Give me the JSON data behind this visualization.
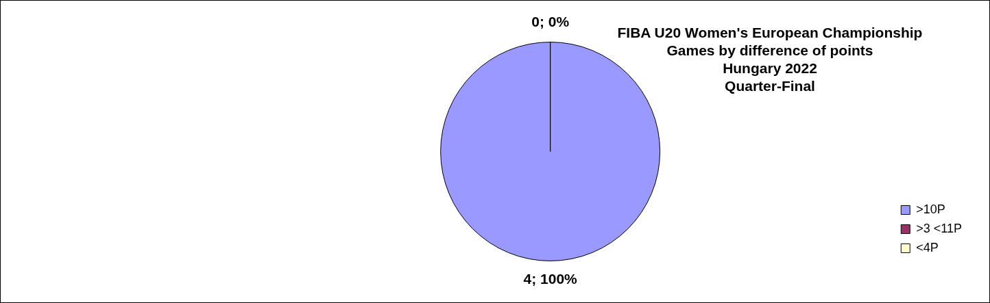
{
  "chart_data": {
    "type": "pie",
    "title": "FIBA U20 Women's European Championship",
    "subtitle": "Games by difference of points\nHungary 2022\nQuarter-Final",
    "categories": [
      ">10P",
      ">3 <11P",
      "<4P"
    ],
    "values": [
      4,
      0,
      0
    ],
    "colors": [
      "#9999ff",
      "#993366",
      "#ffffcc"
    ],
    "value_labels": [
      "4; 100%",
      "0; 0%",
      null
    ],
    "legend": "bottom right"
  }
}
